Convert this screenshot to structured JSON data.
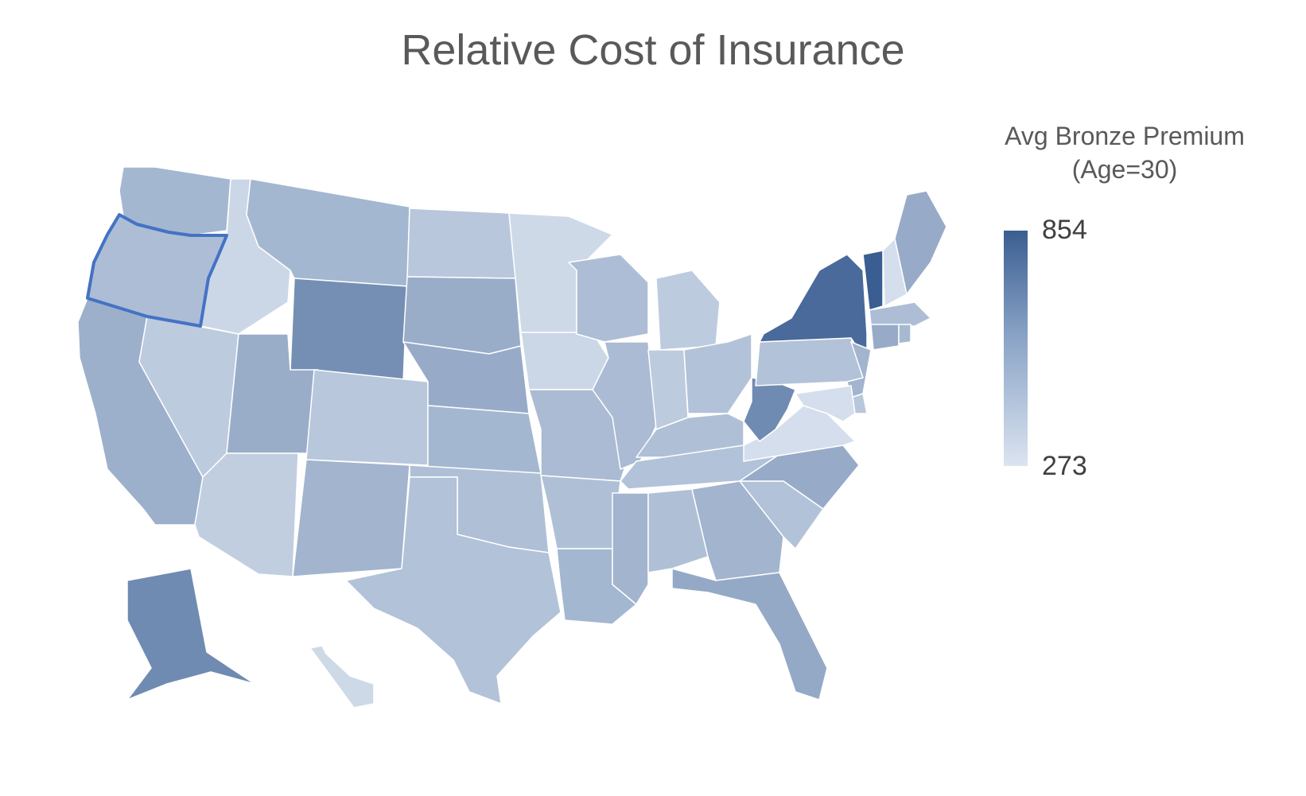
{
  "title": "Relative Cost of Insurance",
  "legend": {
    "title_line1": "Avg Bronze Premium",
    "title_line2": "(Age=30)",
    "max": "854",
    "min": "273",
    "color_high": "#3a5e91",
    "color_low": "#dbe4f0"
  },
  "selected_state": "OR",
  "chart_data": {
    "type": "choropleth",
    "value_range": [
      273,
      854
    ],
    "states": {
      "WA": 470,
      "OR": 440,
      "CA": 500,
      "NV": 380,
      "ID": 330,
      "MT": 470,
      "WY": 640,
      "UT": 510,
      "AZ": 370,
      "CO": 400,
      "NM": 480,
      "ND": 400,
      "SD": 510,
      "NE": 520,
      "KS": 470,
      "OK": 430,
      "TX": 420,
      "MN": 320,
      "IA": 330,
      "MO": 450,
      "AR": 430,
      "LA": 470,
      "WI": 440,
      "IL": 450,
      "MI": 380,
      "IN": 380,
      "OH": 420,
      "KY": 430,
      "TN": 420,
      "MS": 480,
      "AL": 430,
      "GA": 480,
      "FL": 530,
      "SC": 420,
      "NC": 520,
      "VA": 300,
      "WV": 660,
      "PA": 420,
      "NY": 800,
      "VT": 854,
      "NH": 300,
      "ME": 520,
      "MA": 440,
      "CT": 520,
      "RI": 460,
      "NJ": 480,
      "DE": 400,
      "MD": 300,
      "AK": 660,
      "HI": 320
    }
  }
}
